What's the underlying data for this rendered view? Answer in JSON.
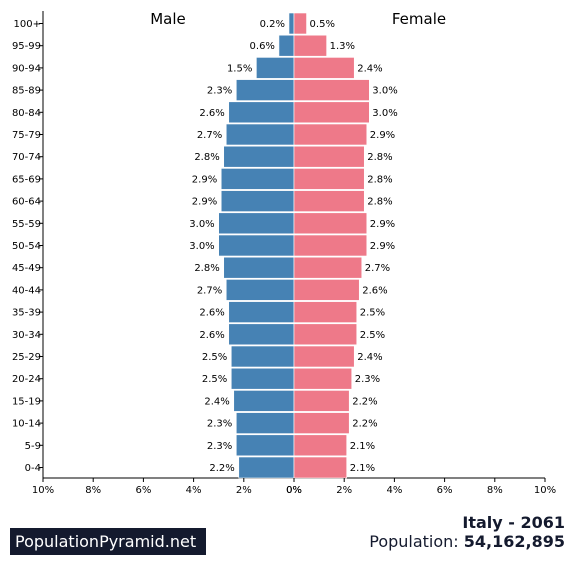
{
  "chart_data": {
    "type": "bar",
    "orientation": "horizontal-pyramid",
    "categories": [
      "0-4",
      "5-9",
      "10-14",
      "15-19",
      "20-24",
      "25-29",
      "30-34",
      "35-39",
      "40-44",
      "45-49",
      "50-54",
      "55-59",
      "60-64",
      "65-69",
      "70-74",
      "75-79",
      "80-84",
      "85-89",
      "90-94",
      "95-99",
      "100+"
    ],
    "series": [
      {
        "name": "Male",
        "color": "#4682b4",
        "values": [
          2.2,
          2.3,
          2.3,
          2.4,
          2.5,
          2.5,
          2.6,
          2.6,
          2.7,
          2.8,
          3.0,
          3.0,
          2.9,
          2.9,
          2.8,
          2.7,
          2.6,
          2.3,
          1.5,
          0.6,
          0.2
        ]
      },
      {
        "name": "Female",
        "color": "#ee7989",
        "values": [
          2.1,
          2.1,
          2.2,
          2.2,
          2.3,
          2.4,
          2.5,
          2.5,
          2.6,
          2.7,
          2.9,
          2.9,
          2.8,
          2.8,
          2.8,
          2.9,
          3.0,
          3.0,
          2.4,
          1.3,
          0.5
        ]
      }
    ],
    "value_labels": {
      "male": [
        "2.2%",
        "2.3%",
        "2.3%",
        "2.4%",
        "2.5%",
        "2.5%",
        "2.6%",
        "2.6%",
        "2.7%",
        "2.8%",
        "3.0%",
        "3.0%",
        "2.9%",
        "2.9%",
        "2.8%",
        "2.7%",
        "2.6%",
        "2.3%",
        "1.5%",
        "0.6%",
        "0.2%"
      ],
      "female": [
        "2.1%",
        "2.1%",
        "2.2%",
        "2.2%",
        "2.3%",
        "2.4%",
        "2.5%",
        "2.5%",
        "2.6%",
        "2.7%",
        "2.9%",
        "2.9%",
        "2.8%",
        "2.8%",
        "2.8%",
        "2.9%",
        "3.0%",
        "3.0%",
        "2.4%",
        "1.3%",
        "0.5%"
      ]
    },
    "x_ticks": [
      "10%",
      "8%",
      "6%",
      "4%",
      "2%",
      "0%",
      "0%",
      "2%",
      "4%",
      "6%",
      "8%",
      "10%"
    ],
    "xlim": [
      -10,
      10
    ]
  },
  "labels": {
    "male_title": "Male",
    "female_title": "Female"
  },
  "footer": {
    "brand": "PopulationPyramid.net",
    "country_year": "Italy - 2061",
    "population_label": "Population:",
    "population_value": "54,162,895"
  }
}
